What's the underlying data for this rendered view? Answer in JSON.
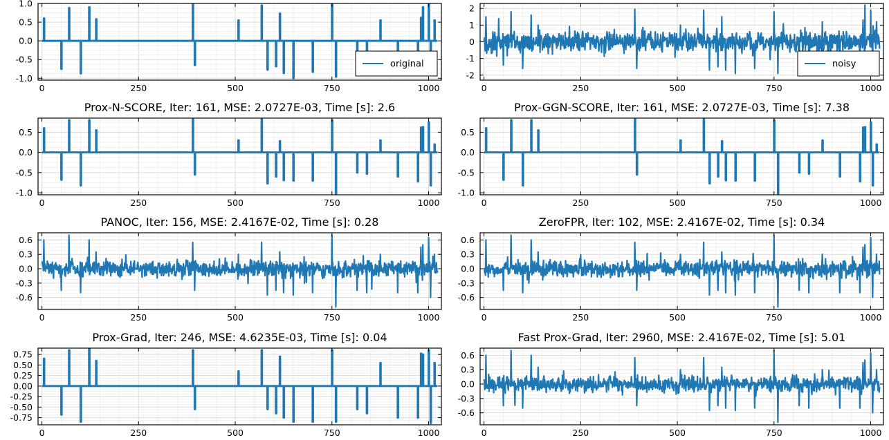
{
  "figure": {
    "line_color": "#1f77b4",
    "grid_color": "#d9d9d9",
    "minor_grid_color": "#efefef"
  },
  "chart_data": [
    {
      "type": "line",
      "title": "",
      "legend": {
        "label": "original",
        "placement": "lower-right"
      },
      "xlim": [
        -10,
        1033
      ],
      "ylim": [
        -1.05,
        1.0
      ],
      "xticks": [
        0,
        250,
        500,
        750,
        1000
      ],
      "yticks": [
        -1.0,
        -0.5,
        0.0,
        0.5,
        1.0
      ],
      "ytick_labels": [
        "-1.0",
        "-0.5",
        "0.0",
        "0.5",
        "1.0"
      ],
      "grid": true,
      "signal": "sparse",
      "spikes": [
        [
          5,
          0.6
        ],
        [
          50,
          -0.75
        ],
        [
          70,
          0.88
        ],
        [
          100,
          -0.87
        ],
        [
          122,
          0.9
        ],
        [
          140,
          0.58
        ],
        [
          390,
          0.97
        ],
        [
          395,
          -0.65
        ],
        [
          508,
          0.55
        ],
        [
          568,
          0.95
        ],
        [
          583,
          -0.77
        ],
        [
          605,
          -0.68
        ],
        [
          615,
          0.73
        ],
        [
          625,
          -0.86
        ],
        [
          650,
          -1.0
        ],
        [
          700,
          -0.83
        ],
        [
          750,
          0.97
        ],
        [
          760,
          -0.96
        ],
        [
          815,
          -0.73
        ],
        [
          840,
          -0.78
        ],
        [
          875,
          0.55
        ],
        [
          920,
          -0.85
        ],
        [
          972,
          -0.83
        ],
        [
          980,
          0.62
        ],
        [
          985,
          0.9
        ],
        [
          1000,
          0.98
        ],
        [
          1005,
          -0.82
        ],
        [
          1015,
          0.55
        ]
      ]
    },
    {
      "type": "line",
      "title": "",
      "legend": {
        "label": "noisy",
        "placement": "lower-right"
      },
      "xlim": [
        -10,
        1033
      ],
      "ylim": [
        -2.3,
        2.3
      ],
      "xticks": [
        0,
        250,
        500,
        750,
        1000
      ],
      "yticks": [
        -2,
        -1,
        0,
        1,
        2
      ],
      "ytick_labels": [
        "-2",
        "-1",
        "0",
        "1",
        "2"
      ],
      "grid": true,
      "signal": "noisy",
      "noise_level": 0.35,
      "spikes": [
        [
          5,
          1.5
        ],
        [
          50,
          -1.4
        ],
        [
          70,
          1.8
        ],
        [
          100,
          -1.6
        ],
        [
          122,
          1.6
        ],
        [
          140,
          1.0
        ],
        [
          390,
          1.95
        ],
        [
          395,
          -1.6
        ],
        [
          508,
          1.0
        ],
        [
          568,
          1.9
        ],
        [
          583,
          -1.7
        ],
        [
          605,
          -1.5
        ],
        [
          615,
          1.5
        ],
        [
          625,
          -1.7
        ],
        [
          650,
          -1.9
        ],
        [
          700,
          -1.6
        ],
        [
          750,
          1.8
        ],
        [
          760,
          -1.9
        ],
        [
          815,
          -1.5
        ],
        [
          840,
          -1.6
        ],
        [
          875,
          1.2
        ],
        [
          920,
          -1.7
        ],
        [
          972,
          -1.7
        ],
        [
          980,
          1.3
        ],
        [
          985,
          2.2
        ],
        [
          1000,
          1.9
        ],
        [
          1005,
          -1.8
        ],
        [
          1015,
          1.2
        ]
      ]
    },
    {
      "type": "line",
      "title": "Prox-N-SCORE, Iter: 161, MSE: 2.0727E-03, Time [s]: 2.6",
      "xlim": [
        -10,
        1033
      ],
      "ylim": [
        -1.05,
        0.85
      ],
      "xticks": [
        0,
        250,
        500,
        750,
        1000
      ],
      "yticks": [
        -1.0,
        -0.5,
        0.0,
        0.5
      ],
      "ytick_labels": [
        "-1.0",
        "-0.5",
        "0.0",
        "0.5"
      ],
      "grid": true,
      "signal": "sparse",
      "spikes": [
        [
          5,
          0.6
        ],
        [
          50,
          -0.68
        ],
        [
          70,
          0.8
        ],
        [
          100,
          -0.82
        ],
        [
          122,
          0.8
        ],
        [
          140,
          0.55
        ],
        [
          390,
          0.83
        ],
        [
          395,
          -0.55
        ],
        [
          508,
          0.3
        ],
        [
          568,
          0.82
        ],
        [
          583,
          -0.77
        ],
        [
          605,
          -0.6
        ],
        [
          615,
          0.28
        ],
        [
          625,
          -0.69
        ],
        [
          650,
          -0.7
        ],
        [
          700,
          -0.7
        ],
        [
          750,
          0.8
        ],
        [
          760,
          -1.02
        ],
        [
          815,
          -0.5
        ],
        [
          840,
          -0.53
        ],
        [
          875,
          0.3
        ],
        [
          920,
          -0.6
        ],
        [
          972,
          -0.72
        ],
        [
          980,
          0.62
        ],
        [
          985,
          0.63
        ],
        [
          1000,
          0.75
        ],
        [
          1005,
          -0.82
        ],
        [
          1015,
          0.2
        ]
      ]
    },
    {
      "type": "line",
      "title": "Prox-GGN-SCORE, Iter: 161, MSE: 2.0727E-03, Time [s]: 7.38",
      "xlim": [
        -10,
        1033
      ],
      "ylim": [
        -1.05,
        0.85
      ],
      "xticks": [
        0,
        250,
        500,
        750,
        1000
      ],
      "yticks": [
        -1.0,
        -0.5,
        0.0,
        0.5
      ],
      "ytick_labels": [
        "-1.0",
        "-0.5",
        "0.0",
        "0.5"
      ],
      "grid": true,
      "signal": "sparse",
      "spikes": [
        [
          5,
          0.6
        ],
        [
          50,
          -0.68
        ],
        [
          70,
          0.8
        ],
        [
          100,
          -0.82
        ],
        [
          122,
          0.8
        ],
        [
          140,
          0.55
        ],
        [
          390,
          0.83
        ],
        [
          395,
          -0.55
        ],
        [
          508,
          0.3
        ],
        [
          568,
          0.82
        ],
        [
          583,
          -0.77
        ],
        [
          605,
          -0.6
        ],
        [
          615,
          0.28
        ],
        [
          625,
          -0.69
        ],
        [
          650,
          -0.7
        ],
        [
          700,
          -0.7
        ],
        [
          750,
          0.8
        ],
        [
          760,
          -1.02
        ],
        [
          815,
          -0.5
        ],
        [
          840,
          -0.53
        ],
        [
          875,
          0.3
        ],
        [
          920,
          -0.6
        ],
        [
          972,
          -0.72
        ],
        [
          980,
          0.62
        ],
        [
          985,
          0.63
        ],
        [
          1000,
          0.75
        ],
        [
          1005,
          -0.82
        ],
        [
          1015,
          0.2
        ]
      ]
    },
    {
      "type": "line",
      "title": "PANOC, Iter: 156, MSE: 2.4167E-02, Time [s]: 0.28",
      "xlim": [
        -10,
        1033
      ],
      "ylim": [
        -0.85,
        0.75
      ],
      "xticks": [
        0,
        250,
        500,
        750,
        1000
      ],
      "yticks": [
        -0.6,
        -0.3,
        0.0,
        0.3,
        0.6
      ],
      "ytick_labels": [
        "-0.6",
        "-0.3",
        "0.0",
        "0.3",
        "0.6"
      ],
      "grid": true,
      "signal": "noisy",
      "noise_level": 0.1,
      "spikes": [
        [
          5,
          0.6
        ],
        [
          50,
          -0.45
        ],
        [
          70,
          0.7
        ],
        [
          100,
          -0.5
        ],
        [
          122,
          0.6
        ],
        [
          140,
          0.35
        ],
        [
          390,
          0.55
        ],
        [
          395,
          -0.45
        ],
        [
          508,
          0.3
        ],
        [
          568,
          0.55
        ],
        [
          583,
          -0.55
        ],
        [
          605,
          -0.45
        ],
        [
          615,
          0.35
        ],
        [
          625,
          -0.5
        ],
        [
          650,
          -0.55
        ],
        [
          700,
          -0.5
        ],
        [
          750,
          0.7
        ],
        [
          760,
          -0.8
        ],
        [
          815,
          -0.45
        ],
        [
          840,
          -0.5
        ],
        [
          875,
          0.3
        ],
        [
          920,
          -0.5
        ],
        [
          972,
          -0.5
        ],
        [
          980,
          0.45
        ],
        [
          985,
          0.5
        ],
        [
          1000,
          0.65
        ],
        [
          1005,
          -0.6
        ],
        [
          1015,
          0.3
        ]
      ]
    },
    {
      "type": "line",
      "title": "ZeroFPR, Iter: 102, MSE: 2.4167E-02, Time [s]: 0.34",
      "xlim": [
        -10,
        1033
      ],
      "ylim": [
        -0.85,
        0.75
      ],
      "xticks": [
        0,
        250,
        500,
        750,
        1000
      ],
      "yticks": [
        -0.6,
        -0.3,
        0.0,
        0.3,
        0.6
      ],
      "ytick_labels": [
        "-0.6",
        "-0.3",
        "0.0",
        "0.3",
        "0.6"
      ],
      "grid": true,
      "signal": "noisy",
      "noise_level": 0.1,
      "spikes": [
        [
          5,
          0.6
        ],
        [
          50,
          -0.45
        ],
        [
          70,
          0.7
        ],
        [
          100,
          -0.5
        ],
        [
          122,
          0.6
        ],
        [
          140,
          0.35
        ],
        [
          390,
          0.55
        ],
        [
          395,
          -0.45
        ],
        [
          508,
          0.3
        ],
        [
          568,
          0.55
        ],
        [
          583,
          -0.55
        ],
        [
          605,
          -0.45
        ],
        [
          615,
          0.35
        ],
        [
          625,
          -0.5
        ],
        [
          650,
          -0.55
        ],
        [
          700,
          -0.5
        ],
        [
          750,
          0.7
        ],
        [
          760,
          -0.8
        ],
        [
          815,
          -0.45
        ],
        [
          840,
          -0.5
        ],
        [
          875,
          0.3
        ],
        [
          920,
          -0.5
        ],
        [
          972,
          -0.5
        ],
        [
          980,
          0.45
        ],
        [
          985,
          0.5
        ],
        [
          1000,
          0.65
        ],
        [
          1005,
          -0.6
        ],
        [
          1015,
          0.3
        ]
      ]
    },
    {
      "type": "line",
      "title": "Prox-Grad, Iter: 246, MSE: 4.6235E-03, Time [s]: 0.04",
      "xlim": [
        -10,
        1033
      ],
      "ylim": [
        -0.92,
        0.9
      ],
      "xticks": [
        0,
        250,
        500,
        750,
        1000
      ],
      "yticks": [
        -0.75,
        -0.5,
        -0.25,
        0.0,
        0.25,
        0.5,
        0.75
      ],
      "ytick_labels": [
        "-0.75",
        "-0.50",
        "-0.25",
        "0.00",
        "0.25",
        "0.50",
        "0.75"
      ],
      "grid": true,
      "signal": "sparse",
      "spikes": [
        [
          5,
          0.65
        ],
        [
          50,
          -0.68
        ],
        [
          70,
          0.85
        ],
        [
          100,
          -0.85
        ],
        [
          122,
          0.88
        ],
        [
          140,
          0.6
        ],
        [
          390,
          0.85
        ],
        [
          395,
          -0.55
        ],
        [
          508,
          0.35
        ],
        [
          568,
          0.85
        ],
        [
          583,
          -0.55
        ],
        [
          605,
          -0.65
        ],
        [
          615,
          0.7
        ],
        [
          625,
          -0.75
        ],
        [
          650,
          -0.85
        ],
        [
          700,
          -0.85
        ],
        [
          750,
          0.85
        ],
        [
          760,
          -0.85
        ],
        [
          815,
          -0.55
        ],
        [
          840,
          -0.65
        ],
        [
          875,
          0.55
        ],
        [
          920,
          -0.75
        ],
        [
          972,
          -0.75
        ],
        [
          980,
          0.77
        ],
        [
          985,
          0.75
        ],
        [
          1000,
          0.85
        ],
        [
          1005,
          -0.88
        ],
        [
          1015,
          0.55
        ]
      ]
    },
    {
      "type": "line",
      "title": "Fast Prox-Grad, Iter: 2960, MSE: 2.4167E-02, Time [s]: 5.01",
      "xlim": [
        -10,
        1033
      ],
      "ylim": [
        -0.85,
        0.75
      ],
      "xticks": [
        0,
        250,
        500,
        750,
        1000
      ],
      "yticks": [
        -0.6,
        -0.3,
        0.0,
        0.3,
        0.6
      ],
      "ytick_labels": [
        "-0.6",
        "-0.3",
        "0.0",
        "0.3",
        "0.6"
      ],
      "grid": true,
      "signal": "noisy",
      "noise_level": 0.1,
      "spikes": [
        [
          5,
          0.6
        ],
        [
          50,
          -0.45
        ],
        [
          70,
          0.7
        ],
        [
          100,
          -0.5
        ],
        [
          122,
          0.6
        ],
        [
          140,
          0.35
        ],
        [
          390,
          0.55
        ],
        [
          395,
          -0.45
        ],
        [
          508,
          0.3
        ],
        [
          568,
          0.55
        ],
        [
          583,
          -0.55
        ],
        [
          605,
          -0.45
        ],
        [
          615,
          0.35
        ],
        [
          625,
          -0.5
        ],
        [
          650,
          -0.55
        ],
        [
          700,
          -0.5
        ],
        [
          750,
          0.7
        ],
        [
          760,
          -0.8
        ],
        [
          815,
          -0.45
        ],
        [
          840,
          -0.5
        ],
        [
          875,
          0.3
        ],
        [
          920,
          -0.5
        ],
        [
          972,
          -0.5
        ],
        [
          980,
          0.45
        ],
        [
          985,
          0.5
        ],
        [
          1000,
          0.65
        ],
        [
          1005,
          -0.6
        ],
        [
          1015,
          0.3
        ]
      ]
    }
  ]
}
